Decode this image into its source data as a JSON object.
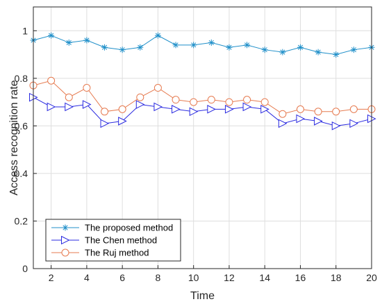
{
  "chart_data": {
    "type": "line",
    "title": "",
    "xlabel": "Time",
    "ylabel": "Access recognition rate",
    "xlim": [
      1,
      20
    ],
    "ylim": [
      0,
      1.1
    ],
    "xticks": [
      2,
      4,
      6,
      8,
      10,
      12,
      14,
      16,
      18,
      20
    ],
    "yticks": [
      0,
      0.2,
      0.4,
      0.6,
      0.8,
      1
    ],
    "grid": true,
    "legend_position": "bottom-left",
    "x": [
      1,
      2,
      3,
      4,
      5,
      6,
      7,
      8,
      9,
      10,
      11,
      12,
      13,
      14,
      15,
      16,
      17,
      18,
      19,
      20
    ],
    "series": [
      {
        "name": "The proposed method",
        "color": "#1f8fc9",
        "marker": "asterisk",
        "values": [
          0.96,
          0.98,
          0.95,
          0.96,
          0.93,
          0.92,
          0.93,
          0.98,
          0.94,
          0.94,
          0.95,
          0.93,
          0.94,
          0.92,
          0.91,
          0.93,
          0.91,
          0.9,
          0.92,
          0.93
        ]
      },
      {
        "name": "The Chen method",
        "color": "#2a2ae0",
        "marker": "triangle-right",
        "values": [
          0.72,
          0.68,
          0.68,
          0.69,
          0.61,
          0.62,
          0.69,
          0.68,
          0.67,
          0.66,
          0.67,
          0.67,
          0.68,
          0.67,
          0.61,
          0.63,
          0.62,
          0.6,
          0.61,
          0.63
        ]
      },
      {
        "name": "The Ruj method",
        "color": "#e67a4f",
        "marker": "circle",
        "values": [
          0.77,
          0.79,
          0.72,
          0.76,
          0.66,
          0.67,
          0.72,
          0.76,
          0.71,
          0.7,
          0.71,
          0.7,
          0.71,
          0.7,
          0.65,
          0.67,
          0.66,
          0.66,
          0.67,
          0.67
        ]
      }
    ]
  }
}
